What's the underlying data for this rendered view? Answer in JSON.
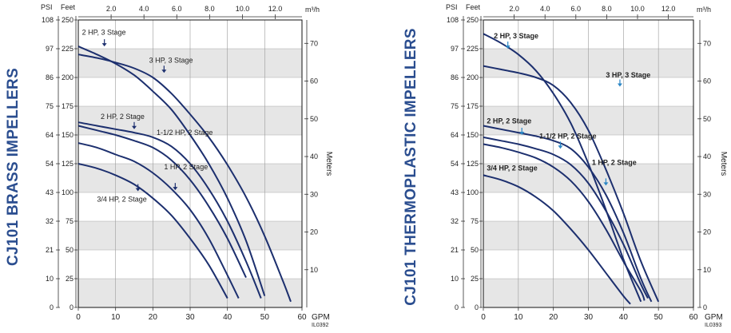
{
  "colors": {
    "curve": "#1c2f6e",
    "band": "#e6e6e6",
    "grid": "#9a9a9a",
    "title": "#2a4d8f",
    "arrow": "#2b86c5"
  },
  "chart_data": [
    {
      "type": "line",
      "title": "CJ101 BRASS IMPELLERS",
      "code": "IL0392",
      "units": {
        "psi": "PSI",
        "feet": "Feet",
        "gpm": "GPM",
        "m3h": "m³/h",
        "meters": "Meters"
      },
      "xlim": [
        0,
        60
      ],
      "ylim": [
        0,
        250
      ],
      "x_ticks": [
        "0",
        "10",
        "20",
        "30",
        "40",
        "50",
        "60"
      ],
      "feet_ticks": [
        "0",
        "25",
        "50",
        "75",
        "100",
        "125",
        "150",
        "175",
        "200",
        "225",
        "250"
      ],
      "psi_ticks": [
        "0",
        "10",
        "21",
        "32",
        "43",
        "54",
        "64",
        "75",
        "86",
        "97",
        "108"
      ],
      "m3h_ticks": [
        "2.0",
        "4.0",
        "6.0",
        "8.0",
        "10.0",
        "12.0"
      ],
      "meter_ticks": [
        "10",
        "20",
        "30",
        "40",
        "50",
        "60",
        "70"
      ],
      "series": [
        {
          "name": "2 HP, 3 Stage",
          "label_at": [
            1,
            237
          ],
          "arrow_to": [
            7,
            227
          ],
          "x": [
            0,
            5,
            10,
            15,
            20,
            25,
            30,
            35,
            40,
            45,
            50
          ],
          "y": [
            227,
            220,
            212,
            202,
            188,
            172,
            150,
            125,
            95,
            58,
            10
          ]
        },
        {
          "name": "3 HP, 3 Stage",
          "label_at": [
            19,
            213
          ],
          "arrow_to": [
            23,
            204
          ],
          "x": [
            0,
            5,
            10,
            15,
            20,
            25,
            30,
            35,
            40,
            45,
            50,
            55,
            57
          ],
          "y": [
            220,
            217,
            213,
            208,
            200,
            186,
            168,
            148,
            124,
            96,
            62,
            22,
            5
          ]
        },
        {
          "name": "2 HP, 2 Stage",
          "label_at": [
            6,
            164
          ],
          "arrow_to": [
            15,
            155
          ],
          "x": [
            0,
            5,
            10,
            15,
            20,
            25,
            30,
            35,
            40,
            45,
            49
          ],
          "y": [
            161,
            158,
            155,
            152,
            148,
            140,
            125,
            103,
            75,
            40,
            8
          ]
        },
        {
          "name": "1-1/2 HP, 2 Stage",
          "label_at": [
            21,
            150
          ],
          "arrow_to": null,
          "x": [
            0,
            5,
            10,
            15,
            20,
            25,
            30,
            35,
            40,
            45
          ],
          "y": [
            158,
            154,
            150,
            145,
            139,
            128,
            111,
            88,
            60,
            26
          ]
        },
        {
          "name": "1 HP, 2 Stage",
          "label_at": [
            23,
            120
          ],
          "arrow_to": [
            26,
            102
          ],
          "x": [
            0,
            5,
            10,
            15,
            20,
            25,
            30,
            35,
            40,
            43
          ],
          "y": [
            143,
            139,
            133,
            127,
            117,
            103,
            85,
            60,
            28,
            8
          ]
        },
        {
          "name": "3/4 HP, 2 Stage",
          "label_at": [
            5,
            92
          ],
          "arrow_to": [
            16,
            101
          ],
          "x": [
            0,
            5,
            10,
            15,
            20,
            25,
            30,
            35,
            40
          ],
          "y": [
            125,
            121,
            115,
            107,
            95,
            80,
            60,
            37,
            8
          ]
        }
      ]
    },
    {
      "type": "line",
      "title": "CJ101 THERMOPLASTIC IMPELLERS",
      "code": "IL0393",
      "units": {
        "psi": "PSI",
        "feet": "Feet",
        "gpm": "GPM",
        "m3h": "m³/h",
        "meters": "Meters"
      },
      "xlim": [
        0,
        60
      ],
      "ylim": [
        0,
        250
      ],
      "x_ticks": [
        "0",
        "10",
        "20",
        "30",
        "40",
        "50",
        "60"
      ],
      "feet_ticks": [
        "0",
        "25",
        "50",
        "75",
        "100",
        "125",
        "150",
        "175",
        "200",
        "225",
        "250"
      ],
      "psi_ticks": [
        "0",
        "10",
        "21",
        "32",
        "43",
        "54",
        "64",
        "75",
        "86",
        "97",
        "108"
      ],
      "m3h_ticks": [
        "2.0",
        "4.0",
        "6.0",
        "8.0",
        "10.0",
        "12.0"
      ],
      "meter_ticks": [
        "0",
        "10",
        "20",
        "30",
        "40",
        "50",
        "60",
        "70"
      ],
      "series": [
        {
          "name": "2 HP, 3 Stage",
          "label_at": [
            3,
            234
          ],
          "arrow_to": [
            7,
            225
          ],
          "x": [
            0,
            5,
            10,
            15,
            20,
            25,
            30,
            35,
            40,
            45
          ],
          "y": [
            238,
            230,
            220,
            206,
            186,
            160,
            125,
            85,
            42,
            5
          ]
        },
        {
          "name": "3 HP, 3 Stage",
          "label_at": [
            35,
            200
          ],
          "arrow_to": [
            39,
            192
          ],
          "x": [
            0,
            5,
            10,
            15,
            20,
            25,
            30,
            35,
            40,
            45,
            50
          ],
          "y": [
            210,
            207,
            204,
            200,
            193,
            178,
            154,
            120,
            82,
            40,
            5
          ]
        },
        {
          "name": "2 HP, 2 Stage",
          "label_at": [
            1,
            160
          ],
          "arrow_to": [
            11,
            150
          ],
          "x": [
            0,
            5,
            10,
            15,
            20,
            25,
            30,
            35,
            40,
            45,
            48
          ],
          "y": [
            158,
            155,
            152,
            149,
            145,
            138,
            122,
            98,
            65,
            25,
            5
          ]
        },
        {
          "name": "1-1/2 HP, 2 Stage",
          "label_at": [
            16,
            147
          ],
          "arrow_to": [
            22,
            138
          ],
          "x": [
            0,
            5,
            10,
            15,
            20,
            25,
            30,
            35,
            40,
            45,
            47
          ],
          "y": [
            148,
            145,
            142,
            138,
            133,
            124,
            108,
            84,
            55,
            20,
            8
          ]
        },
        {
          "name": "1 HP, 2 Stage",
          "label_at": [
            31,
            124
          ],
          "arrow_to": [
            35,
            106
          ],
          "x": [
            0,
            5,
            10,
            15,
            20,
            25,
            30,
            35,
            40,
            45,
            46
          ],
          "y": [
            142,
            139,
            135,
            130,
            122,
            110,
            92,
            68,
            40,
            14,
            6
          ]
        },
        {
          "name": "3/4 HP, 2 Stage",
          "label_at": [
            1,
            119
          ],
          "arrow_to": null,
          "x": [
            0,
            5,
            10,
            15,
            20,
            25,
            30,
            35,
            40,
            42
          ],
          "y": [
            115,
            111,
            105,
            96,
            84,
            68,
            50,
            30,
            10,
            3
          ]
        }
      ]
    }
  ]
}
